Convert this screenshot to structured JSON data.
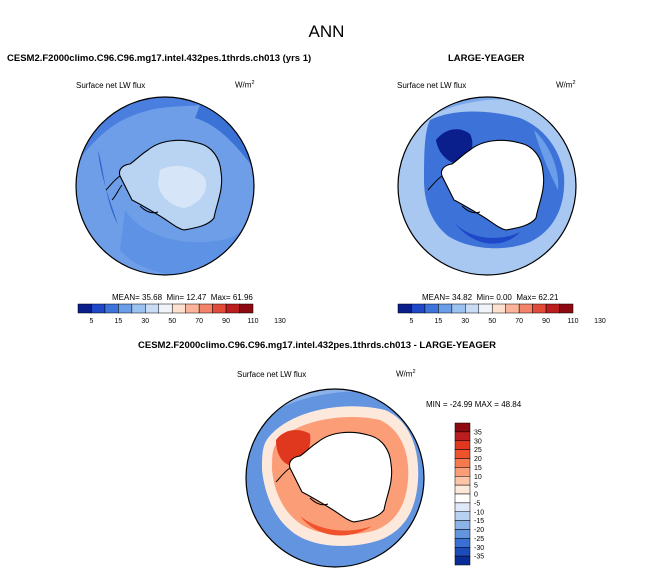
{
  "page_title": "ANN",
  "panels": [
    {
      "title": "CESM2.F2000climo.C96.C96.mg17.intel.432pes.1thrds.ch013 (yrs 1)",
      "variable": "Surface net LW flux",
      "units": "W/m",
      "units_sup": "2",
      "stats": {
        "mean_label": "MEAN=",
        "mean": "35.68",
        "min_label": "Min=",
        "min": "12.47",
        "max_label": "Max=",
        "max": "61.96"
      }
    },
    {
      "title": "LARGE-YEAGER",
      "variable": "Surface net LW flux",
      "units": "W/m",
      "units_sup": "2",
      "stats": {
        "mean_label": "MEAN=",
        "mean": "34.82",
        "min_label": "Min=",
        "min": "0.00",
        "max_label": "Max=",
        "max": "62.21"
      }
    },
    {
      "title": "CESM2.F2000climo.C96.C96.mg17.intel.432pes.1thrds.ch013 - LARGE-YEAGER",
      "variable": "Surface net LW flux",
      "units": "W/m",
      "units_sup": "2",
      "stats": {
        "min_label": "MIN =",
        "min": "-24.99",
        "max_label": "MAX =",
        "max": "48.84"
      }
    }
  ],
  "colorbar_abs": {
    "labels": [
      "5",
      "15",
      "30",
      "50",
      "70",
      "90",
      "110",
      "130"
    ],
    "colors": [
      "#0a1e8c",
      "#1f48c8",
      "#3d74dc",
      "#6a9ee8",
      "#9cc2f0",
      "#c8dcf6",
      "#f0f4fa",
      "#fde0d0",
      "#fbb49a",
      "#f5826a",
      "#e24a3a",
      "#bc1e20",
      "#8c0a10"
    ]
  },
  "colorbar_diff": {
    "labels": [
      "35",
      "30",
      "25",
      "20",
      "15",
      "10",
      "5",
      "0",
      "-5",
      "-10",
      "-15",
      "-20",
      "-25",
      "-30",
      "-35"
    ],
    "colors": [
      "#8c0a10",
      "#bc1e20",
      "#e0381e",
      "#f0522c",
      "#f77a4e",
      "#fb9e78",
      "#fdc4a8",
      "#fde8dc",
      "#ffffff",
      "#dde8f8",
      "#b8d0f2",
      "#8cb2ea",
      "#6294e0",
      "#3a70d4",
      "#1c4cba",
      "#0a2c98"
    ]
  }
}
